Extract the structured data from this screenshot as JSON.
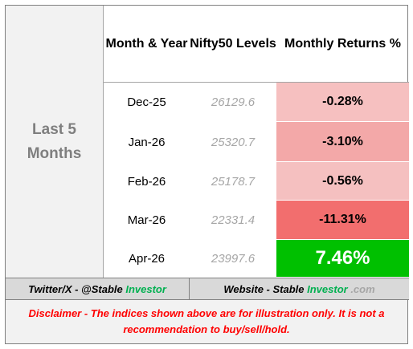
{
  "table": {
    "side_label": "Last 5 Months",
    "header": [
      "Month & Year",
      "Nifty50 Levels",
      "Monthly Returns %"
    ],
    "rows": [
      [
        "Dec-25",
        "26129.6",
        "-0.28%"
      ],
      [
        "Jan-26",
        "25320.7",
        "-3.10%"
      ],
      [
        "Feb-26",
        "25178.7",
        "-0.56%"
      ],
      [
        "Mar-26",
        "22331.4",
        "-11.31%"
      ],
      [
        "Apr-26",
        "23997.6",
        "7.46%"
      ]
    ]
  },
  "footer": {
    "twitter": {
      "prefix": "Twitter/X - @Stable ",
      "highlight": "Investor"
    },
    "website": {
      "prefix": "Website - Stable ",
      "highlight": "Investor",
      "suffix": " .com"
    }
  },
  "disclaimer": "Disclaimer - The indices shown above are for illustration only. It is not a recommendation to buy/sell/hold."
}
